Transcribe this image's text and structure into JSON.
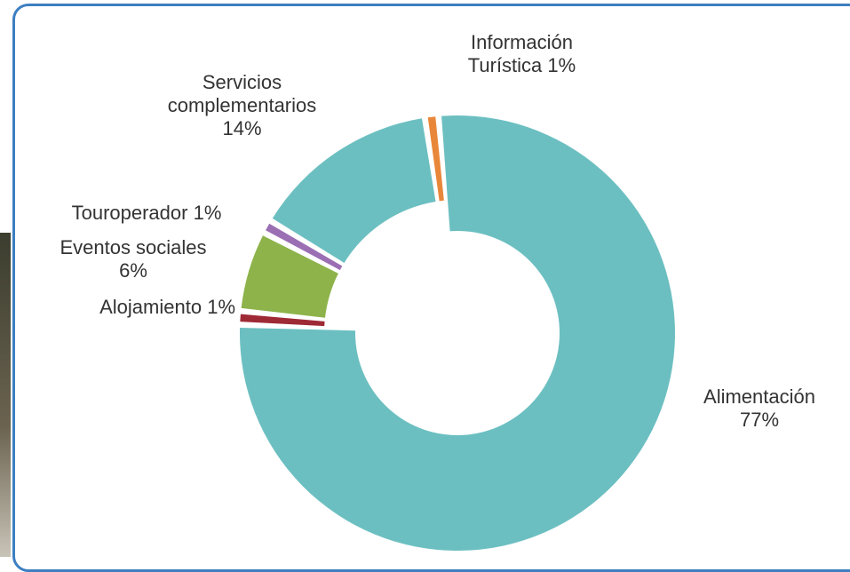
{
  "chart_data": {
    "type": "donut",
    "categories": [
      "Alimentación",
      "Alojamiento",
      "Eventos sociales",
      "Touroperador",
      "Servicios complementarios",
      "Información Turística"
    ],
    "values": [
      77,
      1,
      6,
      1,
      14,
      1
    ],
    "value_labels": [
      "77%",
      "1%",
      "6%",
      "1%",
      "14%",
      "1%"
    ],
    "colors": [
      "#6cbfc1",
      "#9e2a35",
      "#8db34a",
      "#9b6fb3",
      "#6cbfc1",
      "#e8873a"
    ]
  }
}
